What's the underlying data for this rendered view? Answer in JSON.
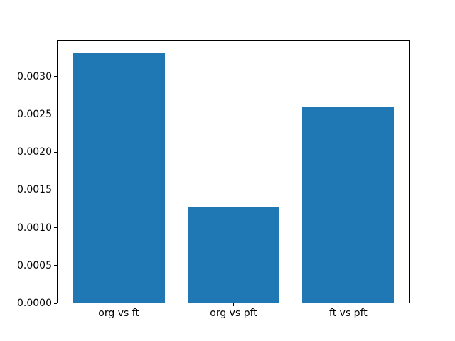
{
  "figure": {
    "background_color": "#ffffff",
    "bar_color": "#1f77b4",
    "spine_color": "#000000",
    "text_color": "#000000"
  },
  "chart_data": {
    "type": "bar",
    "title": "",
    "xlabel": "",
    "ylabel": "",
    "categories": [
      "org vs ft",
      "org vs pft",
      "ft vs pft"
    ],
    "values": [
      0.00331,
      0.00128,
      0.00259
    ],
    "ylim": [
      0,
      0.003476
    ],
    "yticks": [
      0.0,
      0.0005,
      0.001,
      0.0015,
      0.002,
      0.0025,
      0.003
    ],
    "ytick_labels": [
      "0.0000",
      "0.0005",
      "0.0010",
      "0.0015",
      "0.0020",
      "0.0025",
      "0.0030"
    ],
    "bar_width_fraction": 0.8,
    "grid": false,
    "legend_position": "none"
  }
}
